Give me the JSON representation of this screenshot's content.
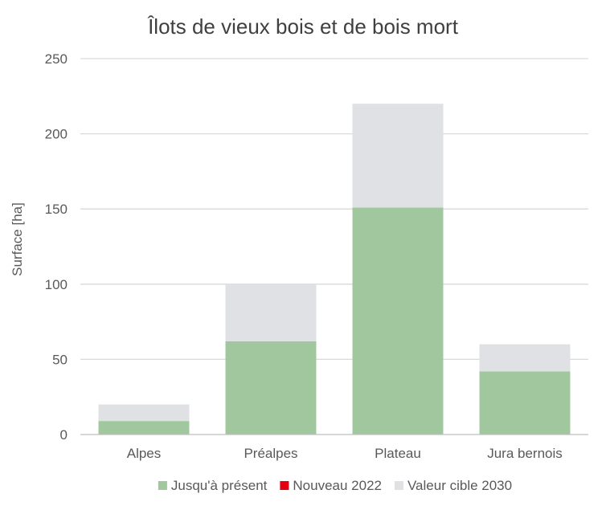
{
  "chart_data": {
    "type": "bar",
    "stacked": true,
    "title": "Îlots de vieux bois et de bois mort",
    "xlabel": "",
    "ylabel": "Surface [ha]",
    "ylim": [
      0,
      250
    ],
    "yticks": [
      "0",
      "50",
      "100",
      "150",
      "200",
      "250"
    ],
    "grid": true,
    "legend_position": "bottom",
    "categories": [
      "Alpes",
      "Préalpes",
      "Plateau",
      "Jura bernois"
    ],
    "series": [
      {
        "name": "Jusqu'à présent",
        "color": "#a1c79f",
        "values": [
          9,
          62,
          151,
          42
        ]
      },
      {
        "name": "Nouveau 2022",
        "color": "#e5000f",
        "values": [
          0,
          0,
          0,
          0
        ]
      },
      {
        "name": "Valeur cible 2030",
        "color": "#dfe1e4",
        "values": [
          11,
          38,
          69,
          18
        ]
      }
    ]
  }
}
